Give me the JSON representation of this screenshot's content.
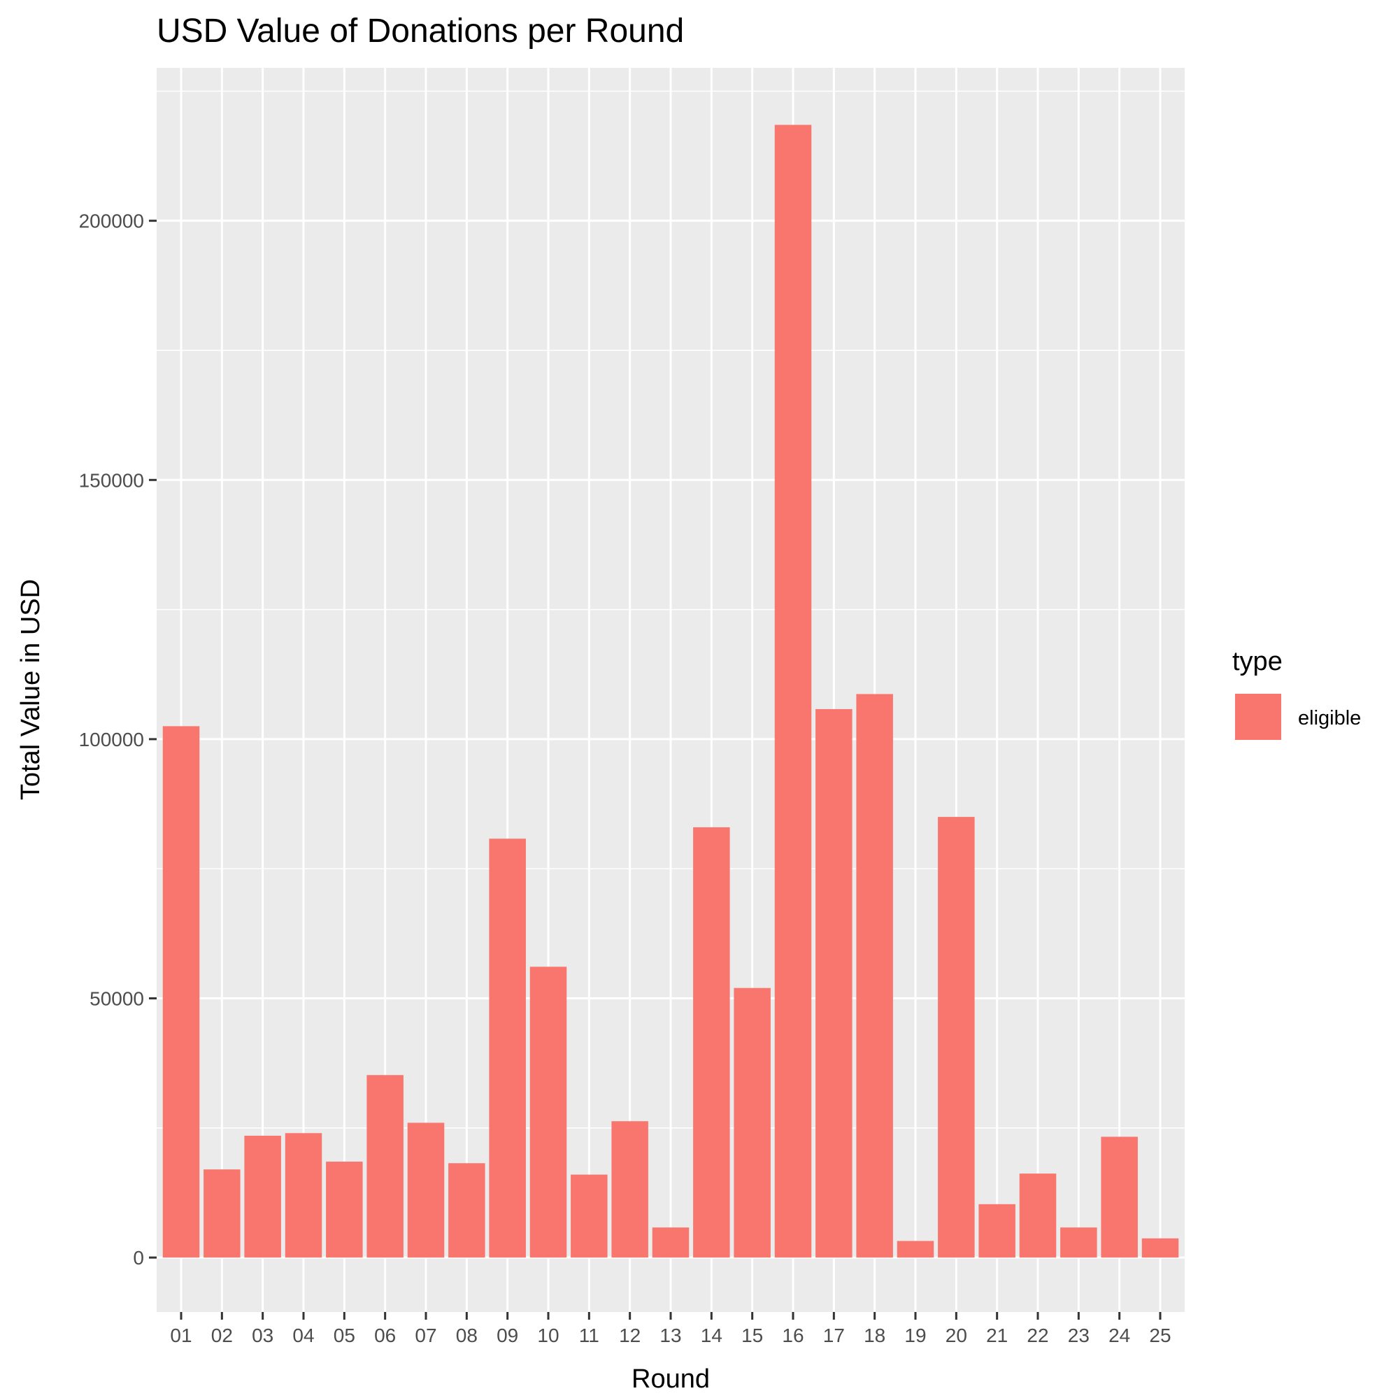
{
  "chart_data": {
    "type": "bar",
    "title": "USD Value of Donations per Round",
    "xlabel": "Round",
    "ylabel": "Total Value in USD",
    "categories": [
      "01",
      "02",
      "03",
      "04",
      "05",
      "06",
      "07",
      "08",
      "09",
      "10",
      "11",
      "12",
      "13",
      "14",
      "15",
      "16",
      "17",
      "18",
      "19",
      "20",
      "21",
      "22",
      "23",
      "24",
      "25"
    ],
    "series": [
      {
        "name": "eligible",
        "color": "#f8766d",
        "values": [
          102500,
          17000,
          23500,
          24000,
          18500,
          35200,
          26000,
          18200,
          80800,
          56100,
          16000,
          26300,
          5800,
          83000,
          52000,
          218500,
          105800,
          108700,
          3200,
          85000,
          10300,
          16200,
          5800,
          23300,
          3700
        ]
      }
    ],
    "ylim": [
      -10500,
      229500
    ],
    "yticks": [
      0,
      50000,
      100000,
      150000,
      200000
    ],
    "ytick_labels": [
      "0",
      "50000",
      "100000",
      "150000",
      "200000"
    ],
    "grid": true,
    "legend": {
      "title": "type",
      "position": "right",
      "entries": [
        "eligible"
      ]
    },
    "colors": {
      "panel_bg": "#ebebeb",
      "grid": "#ffffff",
      "bar": "#f8766d"
    }
  }
}
